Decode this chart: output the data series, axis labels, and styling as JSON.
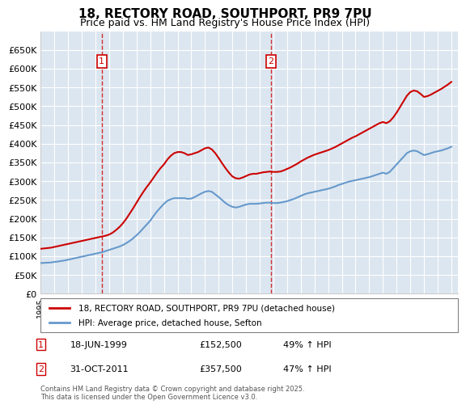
{
  "title": "18, RECTORY ROAD, SOUTHPORT, PR9 7PU",
  "subtitle": "Price paid vs. HM Land Registry's House Price Index (HPI)",
  "ylabel": "",
  "ylim": [
    0,
    700000
  ],
  "yticks": [
    0,
    50000,
    100000,
    150000,
    200000,
    250000,
    300000,
    350000,
    400000,
    450000,
    500000,
    550000,
    600000,
    650000
  ],
  "ytick_labels": [
    "£0",
    "£50K",
    "£100K",
    "£150K",
    "£200K",
    "£250K",
    "£300K",
    "£350K",
    "£400K",
    "£450K",
    "£500K",
    "£550K",
    "£600K",
    "£650K"
  ],
  "xlim_start": 1995.0,
  "xlim_end": 2025.5,
  "sale1_x": 1999.46,
  "sale1_y": 152500,
  "sale1_label": "1",
  "sale1_date": "18-JUN-1999",
  "sale1_price": "£152,500",
  "sale1_hpi": "49% ↑ HPI",
  "sale2_x": 2011.83,
  "sale2_y": 357500,
  "sale2_label": "2",
  "sale2_date": "31-OCT-2011",
  "sale2_price": "£357,500",
  "sale2_hpi": "47% ↑ HPI",
  "line1_color": "#cc0000",
  "line2_color": "#6699cc",
  "vline_color": "#cc0000",
  "marker_box_color": "#cc0000",
  "grid_bg_color": "#dce6f0",
  "legend1": "18, RECTORY ROAD, SOUTHPORT, PR9 7PU (detached house)",
  "legend2": "HPI: Average price, detached house, Sefton",
  "footer": "Contains HM Land Registry data © Crown copyright and database right 2025.\nThis data is licensed under the Open Government Licence v3.0.",
  "hpi_data_x": [
    1995.0,
    1995.25,
    1995.5,
    1995.75,
    1996.0,
    1996.25,
    1996.5,
    1996.75,
    1997.0,
    1997.25,
    1997.5,
    1997.75,
    1998.0,
    1998.25,
    1998.5,
    1998.75,
    1999.0,
    1999.25,
    1999.5,
    1999.75,
    2000.0,
    2000.25,
    2000.5,
    2000.75,
    2001.0,
    2001.25,
    2001.5,
    2001.75,
    2002.0,
    2002.25,
    2002.5,
    2002.75,
    2003.0,
    2003.25,
    2003.5,
    2003.75,
    2004.0,
    2004.25,
    2004.5,
    2004.75,
    2005.0,
    2005.25,
    2005.5,
    2005.75,
    2006.0,
    2006.25,
    2006.5,
    2006.75,
    2007.0,
    2007.25,
    2007.5,
    2007.75,
    2008.0,
    2008.25,
    2008.5,
    2008.75,
    2009.0,
    2009.25,
    2009.5,
    2009.75,
    2010.0,
    2010.25,
    2010.5,
    2010.75,
    2011.0,
    2011.25,
    2011.5,
    2011.75,
    2012.0,
    2012.25,
    2012.5,
    2012.75,
    2013.0,
    2013.25,
    2013.5,
    2013.75,
    2014.0,
    2014.25,
    2014.5,
    2014.75,
    2015.0,
    2015.25,
    2015.5,
    2015.75,
    2016.0,
    2016.25,
    2016.5,
    2016.75,
    2017.0,
    2017.25,
    2017.5,
    2017.75,
    2018.0,
    2018.25,
    2018.5,
    2018.75,
    2019.0,
    2019.25,
    2019.5,
    2019.75,
    2020.0,
    2020.25,
    2020.5,
    2020.75,
    2021.0,
    2021.25,
    2021.5,
    2021.75,
    2022.0,
    2022.25,
    2022.5,
    2022.75,
    2023.0,
    2023.25,
    2023.5,
    2023.75,
    2024.0,
    2024.25,
    2024.5,
    2024.75,
    2025.0
  ],
  "hpi_data_y": [
    82000,
    82500,
    83000,
    83500,
    85000,
    86000,
    87500,
    89000,
    91000,
    93000,
    95000,
    97000,
    99000,
    101000,
    103000,
    105000,
    107000,
    109000,
    111000,
    114000,
    117000,
    120000,
    123000,
    126000,
    130000,
    135000,
    141000,
    148000,
    156000,
    165000,
    175000,
    185000,
    195000,
    208000,
    220000,
    230000,
    240000,
    248000,
    252000,
    255000,
    255000,
    255000,
    255000,
    253000,
    254000,
    258000,
    263000,
    268000,
    272000,
    274000,
    272000,
    265000,
    258000,
    250000,
    242000,
    236000,
    232000,
    230000,
    232000,
    235000,
    238000,
    240000,
    240000,
    240000,
    241000,
    242000,
    243000,
    243000,
    242000,
    242000,
    243000,
    245000,
    247000,
    250000,
    253000,
    257000,
    261000,
    265000,
    268000,
    270000,
    272000,
    274000,
    276000,
    278000,
    280000,
    283000,
    286000,
    290000,
    293000,
    296000,
    299000,
    301000,
    303000,
    305000,
    307000,
    309000,
    311000,
    314000,
    317000,
    320000,
    323000,
    320000,
    325000,
    335000,
    345000,
    355000,
    365000,
    375000,
    380000,
    382000,
    380000,
    375000,
    370000,
    372000,
    375000,
    378000,
    380000,
    382000,
    385000,
    388000,
    392000
  ],
  "price_data_x": [
    1995.0,
    1995.25,
    1995.5,
    1995.75,
    1996.0,
    1996.25,
    1996.5,
    1996.75,
    1997.0,
    1997.25,
    1997.5,
    1997.75,
    1998.0,
    1998.25,
    1998.5,
    1998.75,
    1999.0,
    1999.25,
    1999.5,
    1999.75,
    2000.0,
    2000.25,
    2000.5,
    2000.75,
    2001.0,
    2001.25,
    2001.5,
    2001.75,
    2002.0,
    2002.25,
    2002.5,
    2002.75,
    2003.0,
    2003.25,
    2003.5,
    2003.75,
    2004.0,
    2004.25,
    2004.5,
    2004.75,
    2005.0,
    2005.25,
    2005.5,
    2005.75,
    2006.0,
    2006.25,
    2006.5,
    2006.75,
    2007.0,
    2007.25,
    2007.5,
    2007.75,
    2008.0,
    2008.25,
    2008.5,
    2008.75,
    2009.0,
    2009.25,
    2009.5,
    2009.75,
    2010.0,
    2010.25,
    2010.5,
    2010.75,
    2011.0,
    2011.25,
    2011.5,
    2011.75,
    2012.0,
    2012.25,
    2012.5,
    2012.75,
    2013.0,
    2013.25,
    2013.5,
    2013.75,
    2014.0,
    2014.25,
    2014.5,
    2014.75,
    2015.0,
    2015.25,
    2015.5,
    2015.75,
    2016.0,
    2016.25,
    2016.5,
    2016.75,
    2017.0,
    2017.25,
    2017.5,
    2017.75,
    2018.0,
    2018.25,
    2018.5,
    2018.75,
    2019.0,
    2019.25,
    2019.5,
    2019.75,
    2020.0,
    2020.25,
    2020.5,
    2020.75,
    2021.0,
    2021.25,
    2021.5,
    2021.75,
    2022.0,
    2022.25,
    2022.5,
    2022.75,
    2023.0,
    2023.25,
    2023.5,
    2023.75,
    2024.0,
    2024.25,
    2024.5,
    2024.75,
    2025.0
  ],
  "price_data_y": [
    120000,
    121000,
    122000,
    123000,
    125000,
    127000,
    129000,
    131000,
    133000,
    135000,
    137000,
    139000,
    141000,
    143000,
    145000,
    147000,
    149000,
    151000,
    153000,
    155000,
    158000,
    163000,
    170000,
    178000,
    188000,
    200000,
    214000,
    228000,
    243000,
    258000,
    272000,
    285000,
    297000,
    310000,
    323000,
    335000,
    345000,
    358000,
    368000,
    375000,
    378000,
    378000,
    375000,
    370000,
    372000,
    375000,
    378000,
    383000,
    388000,
    390000,
    385000,
    375000,
    362000,
    348000,
    335000,
    323000,
    313000,
    308000,
    307000,
    310000,
    314000,
    318000,
    320000,
    320000,
    322000,
    324000,
    325000,
    326000,
    325000,
    325000,
    326000,
    329000,
    333000,
    337000,
    342000,
    347000,
    353000,
    358000,
    363000,
    367000,
    371000,
    374000,
    377000,
    380000,
    383000,
    387000,
    391000,
    396000,
    401000,
    406000,
    411000,
    416000,
    420000,
    425000,
    430000,
    435000,
    440000,
    445000,
    450000,
    455000,
    458000,
    455000,
    460000,
    470000,
    483000,
    498000,
    513000,
    528000,
    538000,
    542000,
    540000,
    533000,
    525000,
    527000,
    531000,
    536000,
    541000,
    546000,
    552000,
    558000,
    565000
  ]
}
